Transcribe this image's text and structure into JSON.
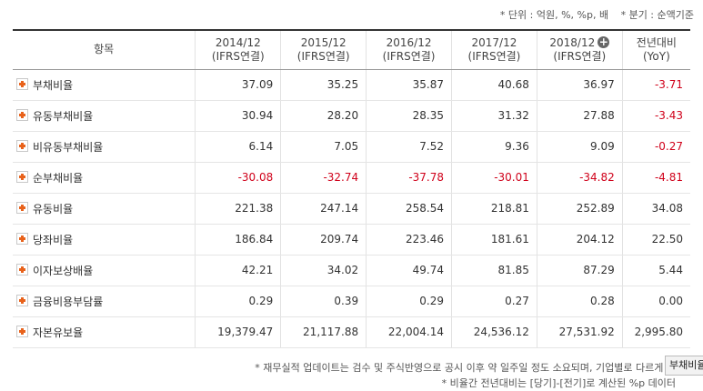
{
  "unit_note": {
    "unit": "* 단위 : 억원, %, %p, 배",
    "basis": "* 분기 : 순액기준"
  },
  "header": {
    "item": "항목",
    "periods": [
      {
        "year": "2014/12",
        "basis": "(IFRS연결)"
      },
      {
        "year": "2015/12",
        "basis": "(IFRS연결)"
      },
      {
        "year": "2016/12",
        "basis": "(IFRS연결)"
      },
      {
        "year": "2017/12",
        "basis": "(IFRS연결)"
      },
      {
        "year": "2018/12",
        "basis": "(IFRS연결)"
      }
    ],
    "yoy_label": "전년대비",
    "yoy_sub": "(YoY)",
    "expand_icon": "plus-circle-icon"
  },
  "rows": [
    {
      "label": "부채비율",
      "values": [
        "37.09",
        "35.25",
        "35.87",
        "40.68",
        "36.97"
      ],
      "yoy": "-3.71"
    },
    {
      "label": "유동부채비율",
      "values": [
        "30.94",
        "28.20",
        "28.35",
        "31.32",
        "27.88"
      ],
      "yoy": "-3.43"
    },
    {
      "label": "비유동부채비율",
      "values": [
        "6.14",
        "7.05",
        "7.52",
        "9.36",
        "9.09"
      ],
      "yoy": "-0.27"
    },
    {
      "label": "순부채비율",
      "values": [
        "-30.08",
        "-32.74",
        "-37.78",
        "-30.01",
        "-34.82"
      ],
      "yoy": "-4.81"
    },
    {
      "label": "유동비율",
      "values": [
        "221.38",
        "247.14",
        "258.54",
        "218.81",
        "252.89"
      ],
      "yoy": "34.08"
    },
    {
      "label": "당좌비율",
      "values": [
        "186.84",
        "209.74",
        "223.46",
        "181.61",
        "204.12"
      ],
      "yoy": "22.50"
    },
    {
      "label": "이자보상배율",
      "values": [
        "42.21",
        "34.02",
        "49.74",
        "81.85",
        "87.29"
      ],
      "yoy": "5.44"
    },
    {
      "label": "금융비용부담률",
      "values": [
        "0.29",
        "0.39",
        "0.29",
        "0.27",
        "0.28"
      ],
      "yoy": "0.00"
    },
    {
      "label": "자본유보율",
      "values": [
        "19,379.47",
        "21,117.88",
        "22,004.14",
        "24,536.12",
        "27,531.92"
      ],
      "yoy": "2,995.80"
    }
  ],
  "footer": {
    "line1": "* 재무실적 업데이트는 검수 및 주식반영으로 공시 이후 약 일주일 정도 소요되며, 기업별로 다르게 적",
    "line2": "* 비율간 전년대비는 [당기]-[전기]로 계산된 %p 데이터"
  },
  "tooltip": "부채비율",
  "colors": {
    "negative": "#d0021b",
    "expand_icon": "#e8621b"
  }
}
